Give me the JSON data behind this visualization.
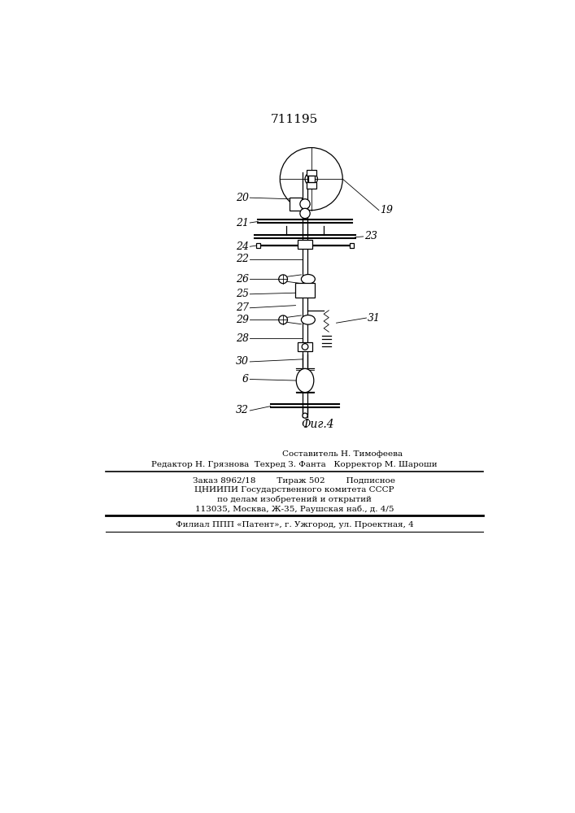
{
  "title": "711195",
  "bg_color": "#ffffff",
  "fig_caption": "Фиг.4",
  "footer_line1": "Составитель Н. Тимофеева",
  "footer_line2": "Редактор Н. Грязнова  Техред З. Фанта   Корректор М. Шароши",
  "footer_line3": "Заказ 8962/18        Тираж 502        Подписное",
  "footer_line4": "ЦНИИПИ Государственного комитета СССР",
  "footer_line5": "по делам изобретений и открытий",
  "footer_line6": "113035, Москва, Ж-35, Раушская наб., д. 4/5",
  "footer_line7": "Филиал ППП «Патент», г. Ужгород, ул. Проектная, 4",
  "label_fontsize": 9,
  "footer_fontsize": 7.5
}
